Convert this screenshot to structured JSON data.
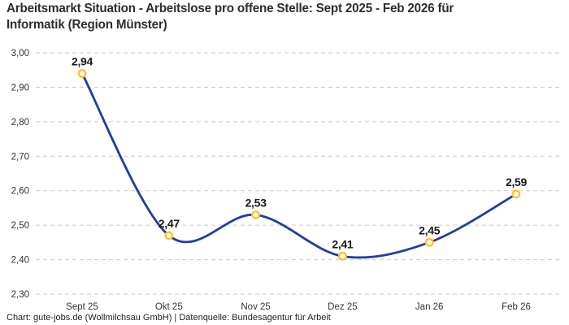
{
  "title": {
    "line1": "Arbeitsmarkt Situation - Arbeitslose pro offene Stelle: Sept 2025 - Feb 2026 für",
    "line2": "Informatik (Region Münster)"
  },
  "footer": {
    "text": "Chart: gute-jobs.de (Wollmilchsau GmbH) | Datenquelle: Bundesagentur für Arbeit"
  },
  "chart_data": {
    "type": "line",
    "title": "Arbeitsmarkt Situation - Arbeitslose pro offene Stelle: Sept 2025 - Feb 2026 für Informatik (Region Münster)",
    "categories": [
      "Sept 25",
      "Okt 25",
      "Nov 25",
      "Dez 25",
      "Jan 26",
      "Feb 26"
    ],
    "values": [
      2.94,
      2.47,
      2.53,
      2.41,
      2.45,
      2.59
    ],
    "value_labels": [
      "2,94",
      "2,47",
      "2,53",
      "2,41",
      "2,45",
      "2,59"
    ],
    "ylim": [
      2.3,
      3.0
    ],
    "ytick_step": 0.1,
    "ytick_labels": [
      "3,00",
      "2,90",
      "2,80",
      "2,70",
      "2,60",
      "2,50",
      "2,40",
      "2,30"
    ],
    "xlabel": "",
    "ylabel": "",
    "grid": "horizontal-dashed",
    "legend": "none",
    "curve": "smooth",
    "colors": {
      "line": "#213d9f",
      "marker_ring": "#fcc32c",
      "marker_fill": "#ffffff",
      "grid": "#cccccc",
      "title_text": "#2e2e2e",
      "tick_text": "#333333",
      "point_label_text": "#1a1a1a",
      "credit_text": "#222222",
      "background": "#ffffff"
    }
  }
}
